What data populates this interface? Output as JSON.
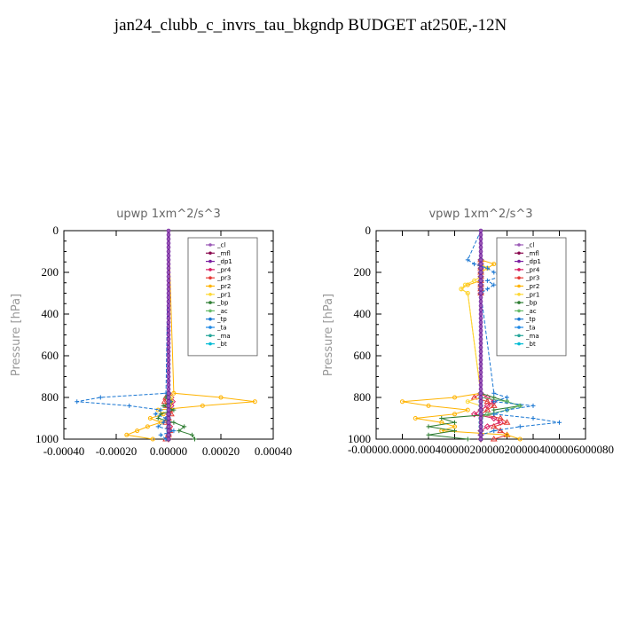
{
  "page_title": "jan24_clubb_c_invrs_tau_bkgndp  BUDGET at250E,-12N",
  "colors": {
    "_cl": "#9b59b6",
    "_mfl": "#8b0a50",
    "_dp1": "#7b1fa2",
    "_pr4": "#d81b60",
    "_pr3": "#e53935",
    "_pr2": "#ffb300",
    "_pr1": "#fdd835",
    "_bp": "#2e7d32",
    "_ac": "#66bb6a",
    "_tp": "#1976d2",
    "_ta": "#1e88e5",
    "_ma": "#26a69a",
    "_bt": "#00bcd4"
  },
  "chart_data": [
    {
      "type": "line",
      "title": "upwp   1xm^2/s^3",
      "ylabel": "Pressure [hPa]",
      "xlabel": "",
      "xlim": [
        -0.0004,
        0.0004
      ],
      "ylim": [
        1000,
        0
      ],
      "x_ticks": [
        "-0.00040",
        "-0.00020",
        "0.00000",
        "0.00020",
        "0.00040"
      ],
      "y_ticks": [
        "0",
        "200",
        "400",
        "600",
        "800",
        "1000"
      ],
      "legend_position": "top-right",
      "levels": [
        780,
        800,
        820,
        840,
        860,
        880,
        900,
        920,
        940,
        960,
        980,
        1000
      ],
      "series": [
        {
          "name": "_cl",
          "values": [
            0,
            0,
            0,
            0,
            0,
            0,
            0,
            0,
            0,
            0,
            0,
            0
          ]
        },
        {
          "name": "_mfl",
          "values": [
            0,
            0,
            0,
            0,
            0,
            0,
            0,
            0,
            0,
            0,
            0,
            0
          ]
        },
        {
          "name": "_dp1",
          "values": [
            0,
            0,
            0,
            0,
            0,
            0,
            0,
            0,
            0,
            0,
            0,
            0
          ]
        },
        {
          "name": "_pr4",
          "values": [
            0,
            1e-05,
            1.5e-05,
            1e-05,
            5e-06,
            0,
            -5e-06,
            0,
            5e-06,
            5e-06,
            0,
            0
          ]
        },
        {
          "name": "_pr3",
          "values": [
            0,
            -1e-05,
            -1.5e-05,
            -5e-06,
            5e-06,
            1e-05,
            0,
            -1e-05,
            0,
            5e-06,
            0,
            -1e-05
          ]
        },
        {
          "name": "_pr2",
          "values": [
            2e-05,
            0.0002,
            0.00033,
            0.00013,
            -4e-05,
            -2e-05,
            -7e-05,
            -3e-05,
            -8e-05,
            -0.00012,
            -0.00016,
            -6e-05
          ]
        },
        {
          "name": "_pr1",
          "values": [
            0,
            1e-05,
            1e-05,
            5e-06,
            0,
            0,
            0,
            0,
            0,
            0,
            0,
            0
          ]
        },
        {
          "name": "_bp",
          "values": [
            0,
            -1e-05,
            1e-05,
            -2e-05,
            2e-05,
            -3e-05,
            -4e-05,
            2e-05,
            6e-05,
            4e-05,
            9e-05,
            0.0001
          ]
        },
        {
          "name": "_ac",
          "values": [
            0,
            0,
            0,
            0,
            0,
            0,
            0,
            0,
            0,
            0,
            0,
            0
          ]
        },
        {
          "name": "_tp",
          "values": [
            -1e-05,
            -0.00026,
            -0.00035,
            -0.00015,
            -3e-05,
            -5e-05,
            -1e-05,
            -2e-05,
            -4e-05,
            2e-05,
            -3e-05,
            -1e-05
          ]
        },
        {
          "name": "_ta",
          "values": [
            0,
            0,
            5e-06,
            0,
            0,
            0,
            0,
            0,
            0,
            0,
            0,
            0
          ]
        },
        {
          "name": "_ma",
          "values": [
            0,
            0,
            0,
            0,
            0,
            0,
            0,
            0,
            0,
            0,
            0,
            0
          ]
        },
        {
          "name": "_bt",
          "values": [
            0,
            0,
            0,
            0,
            0,
            0,
            0,
            0,
            0,
            0,
            0,
            0
          ]
        }
      ]
    },
    {
      "type": "line",
      "title": "vpwp   1xm^2/s^3",
      "ylabel": "Pressure [hPa]",
      "xlabel": "",
      "xlim": [
        -8e-05,
        8e-05
      ],
      "ylim": [
        1000,
        0
      ],
      "x_ticks": [
        "-0.00008",
        "-0.00006",
        "-0.00004",
        "-0.00002",
        "0.00000",
        "0.00002",
        "0.00004",
        "0.00006",
        "0.00008"
      ],
      "x_ticks_display": "-0.00000.0000.0004000002000002000004000006000080",
      "y_ticks": [
        "0",
        "200",
        "400",
        "600",
        "800",
        "1000"
      ],
      "legend_position": "top-right",
      "levels": [
        140,
        160,
        180,
        200,
        220,
        240,
        260,
        280,
        300,
        780,
        800,
        820,
        840,
        860,
        880,
        900,
        920,
        940,
        960,
        980,
        1000
      ],
      "series": [
        {
          "name": "_cl",
          "values": [
            0,
            0,
            0,
            0,
            0,
            0,
            0,
            0,
            0,
            0,
            0,
            0,
            0,
            0,
            0,
            0,
            0,
            0,
            0,
            0,
            0
          ]
        },
        {
          "name": "_mfl",
          "values": [
            0,
            0,
            0,
            0,
            0,
            0,
            0,
            0,
            0,
            0,
            0,
            0,
            0,
            0,
            0,
            0,
            0,
            0,
            0,
            0,
            0
          ]
        },
        {
          "name": "_dp1",
          "values": [
            0,
            0,
            0,
            0,
            0,
            0,
            0,
            0,
            0,
            0,
            0,
            0,
            0,
            0,
            0,
            0,
            0,
            0,
            0,
            0,
            0
          ]
        },
        {
          "name": "_pr4",
          "values": [
            0,
            0,
            0,
            0,
            0,
            0,
            0,
            0,
            0,
            0,
            5e-06,
            1e-05,
            5e-06,
            0,
            -5e-06,
            1e-05,
            1.5e-05,
            5e-06,
            0,
            0,
            0
          ]
        },
        {
          "name": "_pr3",
          "values": [
            0,
            0,
            0,
            0,
            0,
            0,
            0,
            0,
            0,
            0,
            -5e-06,
            5e-06,
            1e-05,
            5e-06,
            0,
            1.5e-05,
            2e-05,
            1e-05,
            1.5e-05,
            2e-05,
            1e-05
          ]
        },
        {
          "name": "_pr2",
          "values": [
            0,
            1e-05,
            5e-06,
            0,
            0,
            0,
            -1e-05,
            -1.5e-05,
            -1e-05,
            0,
            -2e-05,
            -6e-05,
            -4e-05,
            -1e-05,
            -2e-05,
            -5e-05,
            -3e-05,
            -2e-05,
            -3e-05,
            2e-05,
            3e-05
          ]
        },
        {
          "name": "_pr1",
          "values": [
            0,
            0,
            5e-06,
            0,
            0,
            -5e-06,
            -1.2e-05,
            -1.5e-05,
            -1e-05,
            0,
            0,
            -1e-05,
            0,
            0,
            0,
            0,
            0,
            0,
            0,
            0,
            0
          ]
        },
        {
          "name": "_bp",
          "values": [
            0,
            0,
            0,
            0,
            0,
            0,
            0,
            0,
            0,
            0,
            1e-05,
            2e-05,
            3e-05,
            1e-05,
            1e-05,
            -3e-05,
            -2e-05,
            -4e-05,
            -2e-05,
            -4e-05,
            -1e-05
          ]
        },
        {
          "name": "_ac",
          "values": [
            0,
            0,
            0,
            0,
            0,
            0,
            0,
            0,
            0,
            0,
            0,
            2e-05,
            3e-05,
            2e-05,
            5e-06,
            0,
            0,
            0,
            0,
            0,
            0
          ]
        },
        {
          "name": "_tp",
          "values": [
            -1e-05,
            -5e-06,
            5e-06,
            1e-05,
            1.5e-05,
            5e-06,
            1e-05,
            5e-06,
            0,
            1e-05,
            2e-05,
            1e-05,
            4e-05,
            2e-05,
            1e-05,
            4e-05,
            6e-05,
            3e-05,
            1e-05,
            0,
            0
          ]
        },
        {
          "name": "_ta",
          "values": [
            0,
            0,
            0,
            0,
            0,
            0,
            0,
            0,
            0,
            0,
            0,
            0,
            0,
            0,
            0,
            0,
            0,
            0,
            0,
            0,
            0
          ]
        },
        {
          "name": "_ma",
          "values": [
            0,
            0,
            0,
            0,
            0,
            0,
            0,
            0,
            0,
            0,
            0,
            0,
            0,
            0,
            0,
            0,
            0,
            0,
            0,
            0,
            0
          ]
        },
        {
          "name": "_bt",
          "values": [
            0,
            0,
            0,
            0,
            0,
            0,
            0,
            0,
            0,
            0,
            0,
            0,
            0,
            0,
            0,
            0,
            0,
            0,
            0,
            0,
            0
          ]
        }
      ]
    }
  ]
}
